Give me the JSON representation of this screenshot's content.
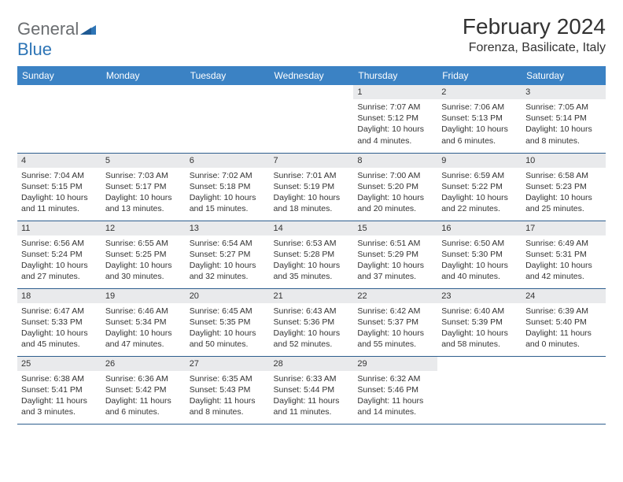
{
  "logo": {
    "text1": "General",
    "text2": "Blue"
  },
  "title": "February 2024",
  "location": "Forenza, Basilicate, Italy",
  "header_bg": "#3b82c4",
  "day_header_bg": "#e9eaec",
  "border_color": "#2e5e8e",
  "weekdays": [
    "Sunday",
    "Monday",
    "Tuesday",
    "Wednesday",
    "Thursday",
    "Friday",
    "Saturday"
  ],
  "first_weekday_index": 4,
  "days": [
    {
      "n": "1",
      "sunrise": "7:07 AM",
      "sunset": "5:12 PM",
      "daylight": "10 hours and 4 minutes."
    },
    {
      "n": "2",
      "sunrise": "7:06 AM",
      "sunset": "5:13 PM",
      "daylight": "10 hours and 6 minutes."
    },
    {
      "n": "3",
      "sunrise": "7:05 AM",
      "sunset": "5:14 PM",
      "daylight": "10 hours and 8 minutes."
    },
    {
      "n": "4",
      "sunrise": "7:04 AM",
      "sunset": "5:15 PM",
      "daylight": "10 hours and 11 minutes."
    },
    {
      "n": "5",
      "sunrise": "7:03 AM",
      "sunset": "5:17 PM",
      "daylight": "10 hours and 13 minutes."
    },
    {
      "n": "6",
      "sunrise": "7:02 AM",
      "sunset": "5:18 PM",
      "daylight": "10 hours and 15 minutes."
    },
    {
      "n": "7",
      "sunrise": "7:01 AM",
      "sunset": "5:19 PM",
      "daylight": "10 hours and 18 minutes."
    },
    {
      "n": "8",
      "sunrise": "7:00 AM",
      "sunset": "5:20 PM",
      "daylight": "10 hours and 20 minutes."
    },
    {
      "n": "9",
      "sunrise": "6:59 AM",
      "sunset": "5:22 PM",
      "daylight": "10 hours and 22 minutes."
    },
    {
      "n": "10",
      "sunrise": "6:58 AM",
      "sunset": "5:23 PM",
      "daylight": "10 hours and 25 minutes."
    },
    {
      "n": "11",
      "sunrise": "6:56 AM",
      "sunset": "5:24 PM",
      "daylight": "10 hours and 27 minutes."
    },
    {
      "n": "12",
      "sunrise": "6:55 AM",
      "sunset": "5:25 PM",
      "daylight": "10 hours and 30 minutes."
    },
    {
      "n": "13",
      "sunrise": "6:54 AM",
      "sunset": "5:27 PM",
      "daylight": "10 hours and 32 minutes."
    },
    {
      "n": "14",
      "sunrise": "6:53 AM",
      "sunset": "5:28 PM",
      "daylight": "10 hours and 35 minutes."
    },
    {
      "n": "15",
      "sunrise": "6:51 AM",
      "sunset": "5:29 PM",
      "daylight": "10 hours and 37 minutes."
    },
    {
      "n": "16",
      "sunrise": "6:50 AM",
      "sunset": "5:30 PM",
      "daylight": "10 hours and 40 minutes."
    },
    {
      "n": "17",
      "sunrise": "6:49 AM",
      "sunset": "5:31 PM",
      "daylight": "10 hours and 42 minutes."
    },
    {
      "n": "18",
      "sunrise": "6:47 AM",
      "sunset": "5:33 PM",
      "daylight": "10 hours and 45 minutes."
    },
    {
      "n": "19",
      "sunrise": "6:46 AM",
      "sunset": "5:34 PM",
      "daylight": "10 hours and 47 minutes."
    },
    {
      "n": "20",
      "sunrise": "6:45 AM",
      "sunset": "5:35 PM",
      "daylight": "10 hours and 50 minutes."
    },
    {
      "n": "21",
      "sunrise": "6:43 AM",
      "sunset": "5:36 PM",
      "daylight": "10 hours and 52 minutes."
    },
    {
      "n": "22",
      "sunrise": "6:42 AM",
      "sunset": "5:37 PM",
      "daylight": "10 hours and 55 minutes."
    },
    {
      "n": "23",
      "sunrise": "6:40 AM",
      "sunset": "5:39 PM",
      "daylight": "10 hours and 58 minutes."
    },
    {
      "n": "24",
      "sunrise": "6:39 AM",
      "sunset": "5:40 PM",
      "daylight": "11 hours and 0 minutes."
    },
    {
      "n": "25",
      "sunrise": "6:38 AM",
      "sunset": "5:41 PM",
      "daylight": "11 hours and 3 minutes."
    },
    {
      "n": "26",
      "sunrise": "6:36 AM",
      "sunset": "5:42 PM",
      "daylight": "11 hours and 6 minutes."
    },
    {
      "n": "27",
      "sunrise": "6:35 AM",
      "sunset": "5:43 PM",
      "daylight": "11 hours and 8 minutes."
    },
    {
      "n": "28",
      "sunrise": "6:33 AM",
      "sunset": "5:44 PM",
      "daylight": "11 hours and 11 minutes."
    },
    {
      "n": "29",
      "sunrise": "6:32 AM",
      "sunset": "5:46 PM",
      "daylight": "11 hours and 14 minutes."
    }
  ],
  "labels": {
    "sunrise": "Sunrise:",
    "sunset": "Sunset:",
    "daylight": "Daylight:"
  }
}
